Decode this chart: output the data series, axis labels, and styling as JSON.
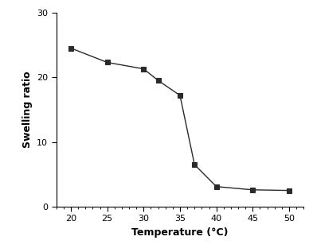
{
  "x": [
    20,
    25,
    30,
    32,
    35,
    37,
    40,
    45,
    50
  ],
  "y": [
    24.5,
    22.3,
    21.3,
    19.5,
    17.2,
    6.5,
    3.1,
    2.6,
    2.5
  ],
  "line_color": "#2a2a2a",
  "marker": "s",
  "marker_color": "#2a2a2a",
  "marker_size": 5,
  "line_width": 1.0,
  "xlabel": "Temperature (°C)",
  "ylabel": "Swelling ratio",
  "xlim": [
    18,
    52
  ],
  "ylim": [
    0,
    30
  ],
  "xticks": [
    20,
    25,
    30,
    35,
    40,
    45,
    50
  ],
  "yticks": [
    0,
    10,
    20,
    30
  ],
  "label_fontsize": 9,
  "tick_fontsize": 8,
  "background_color": "#ffffff"
}
